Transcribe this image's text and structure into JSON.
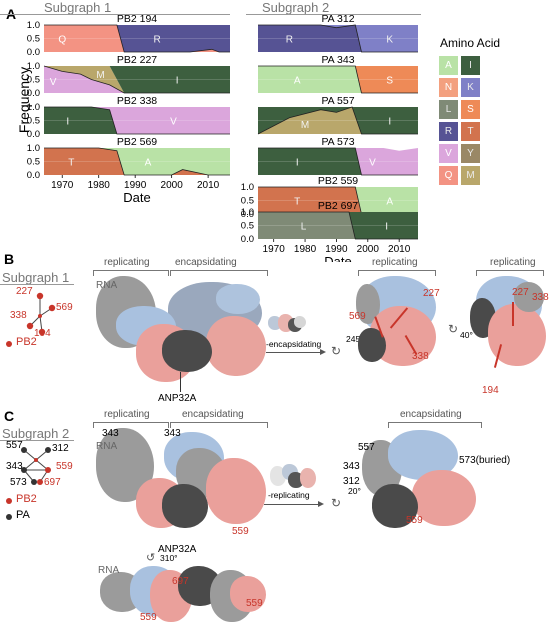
{
  "panel_a": {
    "label": "A",
    "subgraph1_title": "Subgraph 1",
    "subgraph2_title": "Subgraph 2",
    "ylabel": "Frequency",
    "xlabel": "Date",
    "x_ticks": [
      "1970",
      "1980",
      "1990",
      "2000",
      "2010"
    ],
    "y_ticks": [
      "1.0",
      "0.5",
      "0.0"
    ],
    "legend_title": "Amino Acid",
    "legend": [
      {
        "aa": "A",
        "color": "#b9e2a6"
      },
      {
        "aa": "I",
        "color": "#3d5f3f"
      },
      {
        "aa": "N",
        "color": "#f3a07f"
      },
      {
        "aa": "K",
        "color": "#7f80c7"
      },
      {
        "aa": "L",
        "color": "#7f8a76"
      },
      {
        "aa": "S",
        "color": "#ee8a57"
      },
      {
        "aa": "R",
        "color": "#565394"
      },
      {
        "aa": "T",
        "color": "#d2734e"
      },
      {
        "aa": "V",
        "color": "#dba6dc"
      },
      {
        "aa": "Y",
        "color": "#9a8866"
      },
      {
        "aa": "Q",
        "color": "#f39383"
      },
      {
        "aa": "M",
        "color": "#b9a76b"
      }
    ]
  },
  "chart_data": [
    {
      "type": "area",
      "title": "PB2 194",
      "x": [
        1965,
        1975,
        1985,
        1987,
        2005,
        2011,
        2013,
        2016
      ],
      "series": [
        {
          "name": "Q",
          "values": [
            1,
            1,
            1,
            0,
            0,
            0.1,
            0,
            0
          ]
        },
        {
          "name": "R",
          "values": [
            0,
            0,
            0,
            1,
            1,
            0.9,
            1,
            1
          ]
        }
      ],
      "ylim": [
        0,
        1
      ]
    },
    {
      "type": "area",
      "title": "PB2 227",
      "x": [
        1965,
        1970,
        1975,
        1978,
        1983,
        1987,
        2016
      ],
      "series": [
        {
          "name": "V",
          "values": [
            1,
            0.8,
            0.7,
            0.5,
            0.3,
            0,
            0
          ]
        },
        {
          "name": "M",
          "values": [
            0,
            0.2,
            0.3,
            0.5,
            0.7,
            0,
            0
          ]
        },
        {
          "name": "I",
          "values": [
            0,
            0,
            0,
            0,
            0,
            1,
            1
          ]
        }
      ],
      "ylim": [
        0,
        1
      ]
    },
    {
      "type": "area",
      "title": "PB2 338",
      "x": [
        1965,
        1978,
        1983,
        1985,
        2016
      ],
      "series": [
        {
          "name": "I",
          "values": [
            1,
            1,
            0.9,
            0,
            0
          ]
        },
        {
          "name": "V",
          "values": [
            0,
            0,
            0.1,
            1,
            1
          ]
        }
      ],
      "ylim": [
        0,
        1
      ]
    },
    {
      "type": "area",
      "title": "PB2 569",
      "x": [
        1965,
        1980,
        1985,
        1987,
        2000,
        2003,
        2010,
        2016
      ],
      "series": [
        {
          "name": "T",
          "values": [
            1,
            1,
            0.9,
            0,
            0,
            0.2,
            0,
            0
          ]
        },
        {
          "name": "A",
          "values": [
            0,
            0,
            0.1,
            1,
            1,
            0.8,
            1,
            1
          ]
        }
      ],
      "ylim": [
        0,
        1
      ]
    },
    {
      "type": "area",
      "title": "PA 312",
      "x": [
        1965,
        1985,
        1990,
        1996,
        1998,
        2016
      ],
      "series": [
        {
          "name": "R",
          "values": [
            1,
            1,
            0.9,
            1,
            0,
            0
          ]
        },
        {
          "name": "K",
          "values": [
            0,
            0,
            0.1,
            0,
            1,
            1
          ]
        }
      ],
      "ylim": [
        0,
        1
      ]
    },
    {
      "type": "area",
      "title": "PA 343",
      "x": [
        1965,
        1990,
        1996,
        1998,
        2016
      ],
      "series": [
        {
          "name": "A",
          "values": [
            1,
            1,
            1,
            0,
            0
          ]
        },
        {
          "name": "S",
          "values": [
            0,
            0,
            0,
            1,
            1
          ]
        }
      ],
      "ylim": [
        0,
        1
      ]
    },
    {
      "type": "area",
      "title": "PA 557",
      "x": [
        1965,
        1975,
        1985,
        1990,
        1995,
        1998,
        2016
      ],
      "series": [
        {
          "name": "M",
          "values": [
            0,
            0.6,
            0.9,
            0.8,
            1,
            0,
            0
          ]
        },
        {
          "name": "I",
          "values": [
            1,
            0.4,
            0.1,
            0.2,
            0,
            1,
            1
          ]
        }
      ],
      "ylim": [
        0,
        1
      ]
    },
    {
      "type": "area",
      "title": "PA 573",
      "x": [
        1965,
        1990,
        1996,
        1998,
        2005,
        2010,
        2016
      ],
      "series": [
        {
          "name": "I",
          "values": [
            1,
            1,
            1,
            0,
            0,
            0,
            0
          ]
        },
        {
          "name": "V",
          "values": [
            0,
            0,
            0,
            1,
            1,
            0.9,
            1
          ]
        }
      ],
      "ylim": [
        0,
        1
      ]
    },
    {
      "type": "area",
      "title": "PB2 559",
      "x": [
        1965,
        1990,
        1996,
        1998,
        2016
      ],
      "series": [
        {
          "name": "T",
          "values": [
            1,
            1,
            1,
            0,
            0
          ]
        },
        {
          "name": "A",
          "values": [
            0,
            0,
            0,
            1,
            1
          ]
        }
      ],
      "ylim": [
        0,
        1
      ]
    },
    {
      "type": "area",
      "title": "PB2 697",
      "x": [
        1965,
        1994,
        1996,
        2016
      ],
      "series": [
        {
          "name": "L",
          "values": [
            1,
            1,
            0,
            0
          ]
        },
        {
          "name": "I",
          "values": [
            0,
            0,
            1,
            1
          ]
        }
      ],
      "ylim": [
        0,
        1
      ]
    }
  ],
  "panel_b": {
    "label": "B",
    "subgraph_title": "Subgraph 1",
    "nodes": [
      "227",
      "569",
      "338",
      "194"
    ],
    "legend_pb2": "PB2",
    "replicating": "replicating",
    "encapsidating": "encapsidating",
    "rna": "RNA",
    "anp": "ANP32A",
    "arrow_label": "-encapsidating",
    "rot1": "245°",
    "rot2": "40°",
    "site_labels": [
      "227",
      "569",
      "338",
      "227",
      "338",
      "194"
    ]
  },
  "panel_c": {
    "label": "C",
    "subgraph_title": "Subgraph 2",
    "nodes_gray": [
      "557",
      "312",
      "343",
      "573"
    ],
    "nodes_red": [
      "559",
      "697"
    ],
    "legend_pb2": "PB2",
    "legend_pa": "PA",
    "replicating": "replicating",
    "encapsidating": "encapsidating",
    "rna": "RNA",
    "anp": "ANP32A",
    "label_343": "343",
    "label_559": "559",
    "arrow_label": "-replicating",
    "rot1": "20°",
    "rot_bottom": "310°",
    "right_labels": [
      "557",
      "343",
      "312",
      "573(buried)",
      "559"
    ],
    "bottom_labels": [
      "697",
      "559",
      "559"
    ]
  }
}
